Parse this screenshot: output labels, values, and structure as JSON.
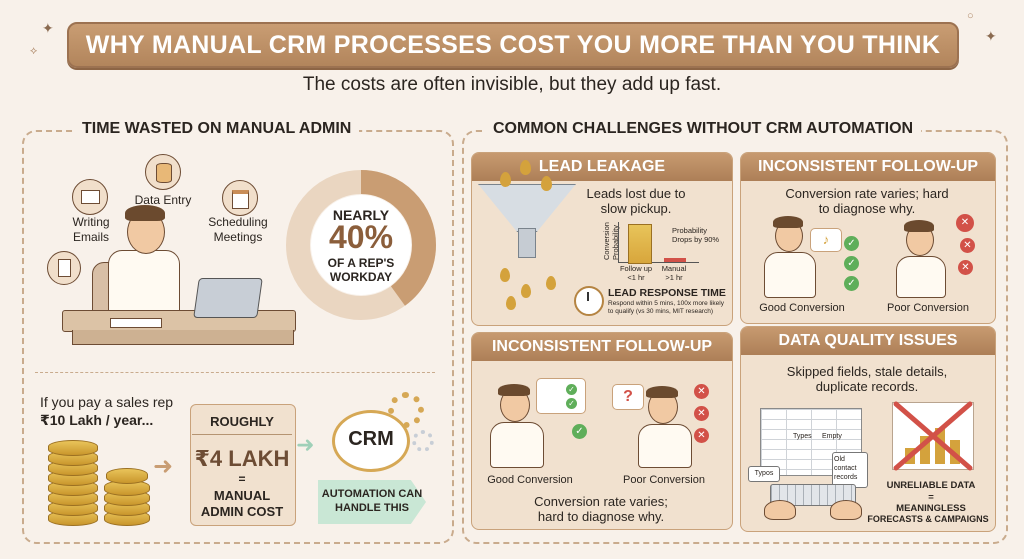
{
  "header": {
    "title": "WHY MANUAL CRM PROCESSES COST YOU MORE THAN YOU THINK",
    "subtitle": "The costs are often invisible, but they add up fast."
  },
  "left_section": {
    "title": "TIME WASTED ON MANUAL ADMIN",
    "tasks": {
      "writing_emails": "Writing\nEmails",
      "data_entry": "Data Entry",
      "scheduling": "Scheduling\nMeetings"
    },
    "donut": {
      "percent_value": 40,
      "line1": "NEARLY",
      "line2": "40%",
      "line3": "OF A REP'S",
      "line4": "WORKDAY"
    },
    "cost": {
      "intro": "If you pay a sales rep",
      "salary": "₹10 Lakh / year...",
      "roughly": "ROUGHLY",
      "amount": "₹4 LAKH",
      "equals": "=",
      "manual_cost_1": "MANUAL",
      "manual_cost_2": "ADMIN COST",
      "crm": "CRM",
      "automation_1": "AUTOMATION CAN",
      "automation_2": "HANDLE THIS"
    }
  },
  "right_section": {
    "title": "COMMON CHALLENGES WITHOUT CRM AUTOMATION",
    "lead_leakage": {
      "title": "LEAD LEAKAGE",
      "text": "Leads lost due to\nslow pickup.",
      "y_axis": "Conversion\nProbability",
      "probability_note": "Probability\nDrops by 90%",
      "bar1_label": "Follow up\n<1 hr",
      "bar2_label": "Manual\n>1 hr",
      "response_title": "LEAD RESPONSE TIME",
      "response_text": "Respond within 5 mins, 100x more likely\nto qualify (vs 30 mins, MIT research)"
    },
    "follow_up_top": {
      "title": "INCONSISTENT FOLLOW-UP",
      "text": "Conversion rate varies; hard\nto diagnose why.",
      "good": "Good Conversion",
      "poor": "Poor Conversion"
    },
    "follow_up_bottom": {
      "title": "INCONSISTENT FOLLOW-UP",
      "text": "Conversion rate varies;\nhard to diagnose why.",
      "good": "Good Conversion",
      "poor": "Poor Conversion"
    },
    "data_quality": {
      "title": "DATA QUALITY ISSUES",
      "text": "Skipped fields, stale details,\nduplicate records.",
      "cell1": "Types",
      "cell2": "Empty",
      "typos": "Typos",
      "old_records": "Old\ncontact\nrecords",
      "unreliable": "UNRELIABLE DATA",
      "equals": "=",
      "meaningless_1": "MEANINGLESS",
      "meaningless_2": "FORECASTS & CAMPAIGNS"
    }
  },
  "colors": {
    "banner": "#b98c62",
    "background": "#f8f1ea",
    "card": "#f1e1cf",
    "donut": "#c99d73",
    "donut_track": "#ead6c1",
    "green": "#5fae5a",
    "red": "#d25148",
    "gold": "#d4a23c"
  }
}
